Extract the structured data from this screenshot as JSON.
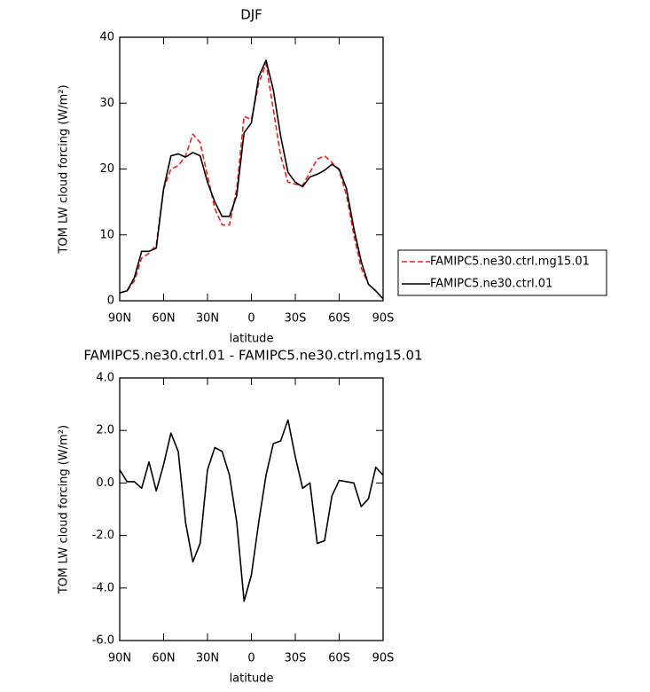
{
  "chart_data": [
    {
      "type": "line",
      "title": "DJF",
      "xlabel": "latitude",
      "ylabel": "TOM LW cloud forcing (W/m²)",
      "x": [
        90,
        85,
        80,
        75,
        70,
        65,
        60,
        55,
        50,
        45,
        40,
        35,
        30,
        25,
        20,
        15,
        10,
        5,
        0,
        -5,
        -10,
        -15,
        -20,
        -25,
        -30,
        -35,
        -40,
        -45,
        -50,
        -55,
        -60,
        -65,
        -70,
        -75,
        -80,
        -85,
        -90
      ],
      "series": [
        {
          "name": "FAMIPC5.ne30.ctrl.mg15.01",
          "color": "#e8261f",
          "dash": true,
          "values": [
            1.2,
            1.5,
            3,
            6.5,
            7.2,
            8.5,
            17,
            20,
            20.5,
            22,
            25.3,
            24,
            19,
            14,
            11.5,
            11.5,
            17,
            28,
            27.5,
            33,
            36,
            29,
            22,
            18,
            17.7,
            17.5,
            19.5,
            21.5,
            22,
            21,
            19.8,
            16,
            10,
            5,
            2.5,
            1.5,
            0.3
          ]
        },
        {
          "name": "FAMIPC5.ne30.ctrl.01",
          "color": "#000000",
          "dash": false,
          "values": [
            1.2,
            1.5,
            3.5,
            7.5,
            7.5,
            8,
            17,
            22,
            22.3,
            21.8,
            22.5,
            22,
            18,
            15,
            12.8,
            12.8,
            16,
            25.5,
            27,
            34,
            36.5,
            32,
            25,
            19.5,
            18,
            17.3,
            18.8,
            19.2,
            19.8,
            20.7,
            20,
            17,
            11,
            6,
            2.5,
            1.5,
            0.3
          ]
        }
      ],
      "xlim": [
        90,
        -90
      ],
      "xticks": [
        {
          "value": 90,
          "label": "90N"
        },
        {
          "value": 60,
          "label": "60N"
        },
        {
          "value": 30,
          "label": "30N"
        },
        0,
        {
          "value": -30,
          "label": "30S"
        },
        {
          "value": -60,
          "label": "60S"
        },
        {
          "value": -90,
          "label": "90S"
        }
      ],
      "ylim": [
        0,
        40
      ],
      "yticks": [
        0,
        10,
        20,
        30,
        40
      ],
      "legend": "right"
    },
    {
      "type": "line",
      "title": "FAMIPC5.ne30.ctrl.01 - FAMIPC5.ne30.ctrl.mg15.01",
      "xlabel": "latitude",
      "ylabel": "TOM LW cloud forcing (W/m²)",
      "x": [
        90,
        85,
        80,
        75,
        70,
        65,
        60,
        55,
        50,
        45,
        40,
        35,
        30,
        25,
        20,
        15,
        10,
        5,
        0,
        -5,
        -10,
        -15,
        -20,
        -25,
        -30,
        -35,
        -40,
        -45,
        -50,
        -55,
        -60,
        -65,
        -70,
        -75,
        -80,
        -85,
        -90
      ],
      "series": [
        {
          "color": "#000000",
          "dash": false,
          "values": [
            0.5,
            0.05,
            0.05,
            -0.2,
            0.8,
            -0.3,
            0.7,
            1.9,
            1.2,
            -1.5,
            -3.0,
            -2.3,
            0.5,
            1.35,
            1.2,
            0.3,
            -1.5,
            -4.5,
            -3.5,
            -1.5,
            0.3,
            1.5,
            1.6,
            2.4,
            1.0,
            -0.2,
            0,
            -2.3,
            -2.2,
            -0.5,
            0.1,
            0.05,
            0,
            -0.9,
            -0.6,
            0.6,
            0.3
          ]
        }
      ],
      "xlim": [
        90,
        -90
      ],
      "xticks": [
        {
          "value": 90,
          "label": "90N"
        },
        {
          "value": 60,
          "label": "60N"
        },
        {
          "value": 30,
          "label": "30N"
        },
        0,
        {
          "value": -30,
          "label": "30S"
        },
        {
          "value": -60,
          "label": "60S"
        },
        {
          "value": -90,
          "label": "90S"
        }
      ],
      "ylim": [
        -6,
        4
      ],
      "yticks": [
        {
          "value": -6,
          "label": "-6.0"
        },
        {
          "value": -4,
          "label": "-4.0"
        },
        {
          "value": -2,
          "label": "-2.0"
        },
        {
          "value": 0,
          "label": "0.0"
        },
        {
          "value": 2,
          "label": "2.0"
        },
        {
          "value": 4,
          "label": "4.0"
        }
      ]
    }
  ]
}
